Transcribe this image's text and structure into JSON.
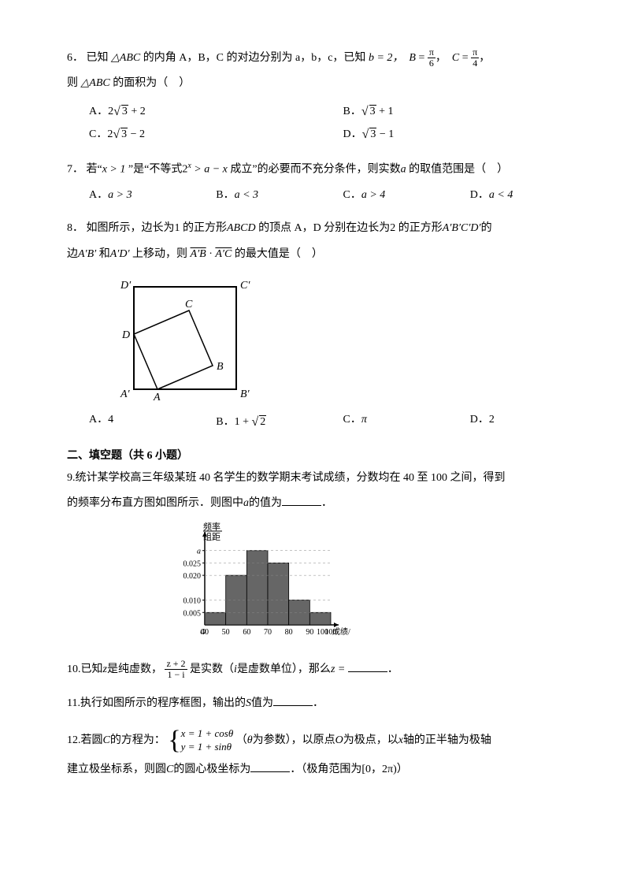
{
  "q6": {
    "num": "6．",
    "text1": "已知",
    "tri": "△ABC",
    "text2": "的内角 A，B，C 的对边分别为 a，b，c，已知",
    "bval": "b = 2，",
    "B_eq": {
      "n": "π",
      "d": "6"
    },
    "C_eq": {
      "n": "π",
      "d": "4"
    },
    "text3": "则",
    "tri2": "△ABC",
    "text4": "的面积为（　）",
    "optA_lbl": "A．",
    "optA": "2",
    "optA_root": "3",
    "optA_tail": " + 2",
    "optB_lbl": "B．",
    "optB_root": "3",
    "optB_tail": " + 1",
    "optC_lbl": "C．",
    "optC": "2",
    "optC_root": "3",
    "optC_tail": " − 2",
    "optD_lbl": "D．",
    "optD_root": "3",
    "optD_tail": " − 1"
  },
  "q7": {
    "num": "7．",
    "t1": "若“",
    "v1": "x > 1",
    "t2": "”是“不等式",
    "v2": "2",
    "exp": "x",
    "v3": " > a − x",
    "t3": "成立”的必要而不充分条件，则实数",
    "v4": "a",
    "t4": "的取值范围是（　）",
    "A_lbl": "A．",
    "A": "a > 3",
    "B_lbl": "B．",
    "B": "a < 3",
    "C_lbl": "C．",
    "C": "a > 4",
    "D_lbl": "D．",
    "D": "a < 4"
  },
  "q8": {
    "num": "8．",
    "t1": "如图所示，边长为",
    "one": "1",
    "t2": "的正方形",
    "sq": "ABCD",
    "t3": "的顶点 A，D 分别在边长为",
    "two": "2",
    "t4": " 的正方形",
    "sq2": "A′B′C′D′",
    "t5": "的",
    "line2a": "边",
    "e1": "A′B′",
    "and": "和",
    "e2": "A′D′",
    "t6": "上移动，则",
    "vec1": "A′B",
    "dot": "·",
    "vec2": "A′C",
    "t7": "的最大值是（　）",
    "A_lbl": "A．",
    "A": "4",
    "B_lbl": "B．",
    "B_pre": "1 + ",
    "B_root": "2",
    "C_lbl": "C．",
    "C": "π",
    "D_lbl": "D．",
    "D": "2",
    "labels": {
      "Dp": "D′",
      "Cp": "C′",
      "Ap": "A′",
      "Bp": "B′",
      "A": "A",
      "B": "B",
      "C": "C",
      "D": "D"
    }
  },
  "section2": "二、填空题（共 6 小题）",
  "q9": {
    "num": "9.",
    "t1": "统计某学校高三年级某班 40 名学生的数学期末考试成绩，分数均在 40 至 100 之间，得到",
    "t2": "的频率分布直方图如图所示．则图中",
    "a": "a",
    "t3": "的值为",
    "hist": {
      "ylabel_top": "频率",
      "ylabel_bot": "组距",
      "yticks": [
        "a",
        "0.025",
        "0.020",
        "0.010",
        "0.005"
      ],
      "xticks": [
        "O",
        "40",
        "50",
        "60",
        "70",
        "80",
        "90",
        "100"
      ],
      "xlabel": "成绩/分",
      "bars": [
        {
          "x": 40,
          "h": 0.005
        },
        {
          "x": 50,
          "h": 0.02
        },
        {
          "x": 60,
          "h": 0.03
        },
        {
          "x": 70,
          "h": 0.025
        },
        {
          "x": 80,
          "h": 0.01
        },
        {
          "x": 90,
          "h": 0.005
        }
      ],
      "colors": {
        "bar": "#666666",
        "axis": "#000000",
        "grid": "#000000"
      }
    }
  },
  "q10": {
    "num": "10.",
    "t1": "已知",
    "z": "z",
    "t2": "是纯虚数，",
    "frac_n": "z + 2",
    "frac_d": "1 − i",
    "t3": "是实数（",
    "i": "i",
    "t4": "是虚数单位），那么",
    "z2": "z =",
    "end": "．"
  },
  "q11": {
    "num": "11.",
    "t": "执行如图所示的程序框图，输出的",
    "S": "S",
    "t2": "值为",
    "end": "．"
  },
  "q12": {
    "num": "12.",
    "t1": "若圆",
    "C": "C",
    "t2": "的方程为：",
    "eq1": "x = 1 + cosθ",
    "eq2": "y = 1 + sinθ",
    "t3": "（",
    "theta": "θ",
    "t4": "为参数），以原点",
    "O": "O",
    "t5": "为极点，以",
    "x": "x",
    "t6": "轴的正半轴为极轴",
    "line2_t1": "建立极坐标系，则圆",
    "C2": "C",
    "line2_t2": "的圆心极坐标为",
    "end": "．（极角范围为",
    "range": "[0，2π)",
    "close": "）"
  }
}
